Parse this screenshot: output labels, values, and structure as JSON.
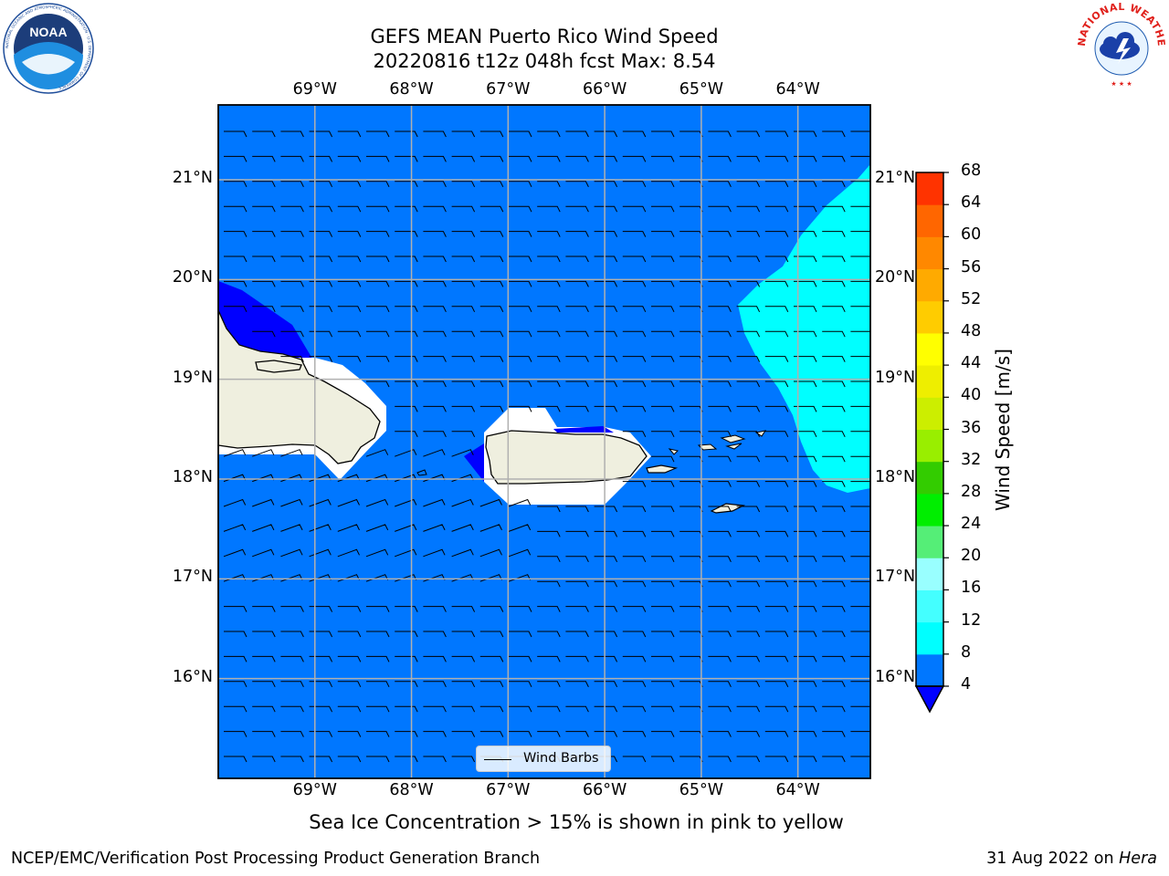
{
  "header": {
    "title_line1": "GEFS MEAN Puerto Rico Wind Speed",
    "title_line2": "20220816 t12z 048h fcst   Max: 8.54"
  },
  "map": {
    "extent": {
      "lon_min": -70.0,
      "lon_max": -63.25,
      "lat_min": 15.0,
      "lat_max": 21.75
    },
    "lon_ticks": [
      {
        "value": -69,
        "label": "69°W"
      },
      {
        "value": -68,
        "label": "68°W"
      },
      {
        "value": -67,
        "label": "67°W"
      },
      {
        "value": -66,
        "label": "66°W"
      },
      {
        "value": -65,
        "label": "65°W"
      },
      {
        "value": -64,
        "label": "64°W"
      }
    ],
    "lat_ticks": [
      {
        "value": 21,
        "label": "21°N"
      },
      {
        "value": 20,
        "label": "20°N"
      },
      {
        "value": 19,
        "label": "19°N"
      },
      {
        "value": 18,
        "label": "18°N"
      },
      {
        "value": 17,
        "label": "17°N"
      },
      {
        "value": 16,
        "label": "16°N"
      }
    ],
    "gridlines": true,
    "ocean_color": "#0077ff",
    "land_color": "#efefdf",
    "wind_direction": "easterly",
    "legend_label": "Wind Barbs",
    "footnote": "Sea Ice Concentration > 15% is shown in pink to yellow"
  },
  "colorbar": {
    "title": "Wind Speed [m/s]",
    "levels": [
      4,
      8,
      12,
      16,
      20,
      24,
      28,
      32,
      36,
      40,
      44,
      48,
      52,
      56,
      60,
      64,
      68
    ],
    "colors": [
      "#0077ff",
      "#00ffff",
      "#44ffff",
      "#99ffff",
      "#55ee77",
      "#00ee00",
      "#33cc00",
      "#99ee00",
      "#ccee00",
      "#eeee00",
      "#ffff00",
      "#ffcc00",
      "#ffaa00",
      "#ff8800",
      "#ff6600",
      "#ff3300",
      "#ff0000"
    ],
    "under_color": "#0000ff"
  },
  "footer": {
    "left": "NCEP/EMC/Verification Post Processing Product Generation Branch",
    "right_date": "31 Aug 2022 on ",
    "right_host": "Hera"
  },
  "logos": {
    "left": "NOAA",
    "left_ring": "NATIONAL OCEANIC AND ATMOSPHERIC ADMINISTRATION · U.S. DEPARTMENT OF COMMERCE",
    "right_ring": "NATIONAL WEATHER SERVICE"
  }
}
